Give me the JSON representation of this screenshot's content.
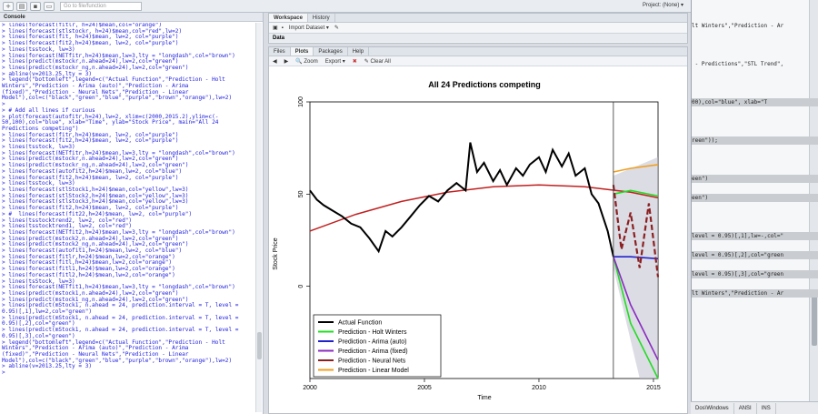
{
  "topbar": {
    "goto_placeholder": "Go to file/function",
    "project": "Project: (None) ▾"
  },
  "console": {
    "title": "Console",
    "lines": [
      "> lines(forecast(fitlr, h=24)$mean,col=\"orange\")",
      "> lines(forecast(stlstockr, h=24)$mean,col=\"red\",lw=2)",
      "> lines(forecast(fit, h=24)$mean, lw=2, col=\"purple\")",
      "> lines(forecast(fit2,h=24)$mean, lw=2, col=\"purple\")",
      "> lines(tsstock, lw=3)",
      "> lines(forecast(NETfitr,h=24)$mean,lw=3,lty = \"longdash\",col=\"brown\")",
      "> lines(predict(mstockr,n.ahead=24),lw=2,col=\"green\")",
      "> lines(predict(mstockr_ng,n.ahead=24),lw=2,col=\"green\")",
      "> abline(v=2013.25,lty = 3)",
      "> legend(\"bottomleft\",legend=c(\"Actual Function\",\"Prediction - Holt",
      "Winters\",\"Prediction - Arima (auto)\",\"Prediction - Arima",
      "(fixed)\",\"Prediction - Neural Nets\",\"Prediction - Linear",
      "Model\"),col=c(\"black\",\"green\",\"blue\",\"purple\",\"brown\",\"orange\"),lw=2)",
      ">",
      "> # Add all lines if curious",
      "> plot(forecast(autofitr,h=24),lw=2, xlim=c(2000,2015.2),ylim=c(-",
      "50,100),col=\"blue\", xlab=\"Time\", ylab=\"Stock Price\", main=\"All 24",
      "Predictions competing\")",
      "> lines(forecast(fitr,h=24)$mean, lw=2, col=\"purple\")",
      "> lines(forecast(fit2,h=24)$mean, lw=2, col=\"purple\")",
      "> lines(tsstock, lw=3)",
      "> lines(forecast(NETfitr,h=24)$mean,lw=3,lty = \"longdash\",col=\"brown\")",
      "> lines(predict(mstockr,n.ahead=24),lw=2,col=\"green\")",
      "> lines(predict(mstockr_ng,n.ahead=24),lw=2,col=\"green\")",
      "> lines(forecast(autofit2,h=24)$mean,lw=2, col=\"blue\")",
      "> lines(forecast(fit2,h=24)$mean, lw=2, col=\"purple\")",
      "> lines(tsstock, lw=3)",
      "> lines(forecast(stlStock1,h=24)$mean,col=\"yellow\",lw=3)",
      "> lines(forecast(stlStock2,h=24)$mean,col=\"yellow\",lw=3)",
      "> lines(forecast(stlstock3,h=24)$mean,col=\"yellow\",lw=3)",
      "> lines(forecast(fit2,h=24)$mean, lw=2, col=\"purple\")",
      "> #  lines(forecast(fit22,h=24)$mean, lw=2, col=\"purple\")",
      "> lines(tsstocktrend2, lw=2, col=\"red\")",
      "> lines(tsstocktrend1, lw=2, col=\"red\")",
      "> lines(forecast(NETfit2,h=24)$mean,lw=3,lty = \"longdash\",col=\"brown\")",
      "> lines(predict(mstock2,n.ahead=24),lw=2,col=\"green\")",
      "> lines(predict(mstock2_ng,n.ahead=24),lw=2,col=\"green\")",
      "> lines(forecast(autofit1,h=24)$mean,lw=2, col=\"blue\")",
      "> lines(forecast(fitlr,h=24)$mean,lw=2,col=\"orange\")",
      "> lines(forecast(fitl,h=24)$mean,lw=2,col=\"orange\")",
      "> lines(forecast(fitl1,h=24)$mean,lw=2,col=\"orange\")",
      "> lines(forecast(fitl2,h=24)$mean,lw=2,col=\"orange\")",
      "> lines(tsStock, lw=3)",
      "> lines(forecast(NETfit1,h=24)$mean,lw=3,lty = \"longdash\",col=\"brown\")",
      "> lines(predict(mstock1,n.ahead=24),lw=2,col=\"green\")",
      "> lines(predict(mstock1_ng,n.ahead=24),lw=2,col=\"green\")",
      "> lines(predict(mStock1, n.ahead = 24, prediction.interval = T, level =",
      "0.95)[,1],lw=2,col=\"green\")",
      "> lines(predict(mStock1, n.ahead = 24, prediction.interval = T, level =",
      "0.95)[,2],col=\"green\")",
      "> lines(predict(mStock1, n.ahead = 24, prediction.interval = T, level =",
      "0.95)[,3],col=\"green\")",
      "> legend(\"bottomleft\",legend=c(\"Actual Function\",\"Prediction - Holt",
      "Winters\",\"Prediction - Arima (auto)\",\"Prediction - Arima",
      "(fixed)\",\"Prediction - Neural Nets\",\"Prediction - Linear",
      "Model\"),col=c(\"black\",\"green\",\"blue\",\"purple\",\"brown\",\"orange\"),lw=2)",
      "> abline(v=2013.25,lty = 3)",
      ">"
    ]
  },
  "workspace": {
    "tabs": [
      "Workspace",
      "History"
    ],
    "import_label": "Import Dataset ▾",
    "section": "Data"
  },
  "plots": {
    "tabs": [
      "Files",
      "Plots",
      "Packages",
      "Help"
    ],
    "zoom": "Zoom",
    "export": "Export ▾",
    "clear": "Clear All"
  },
  "editor": {
    "lines": [
      {
        "text": "lt Winters\",\"Prediction - Ar",
        "hl": false
      },
      {
        "text": "",
        "hl": false
      },
      {
        "text": " - Predictions\",\"STL Trend\",",
        "hl": false
      },
      {
        "text": "",
        "hl": false
      },
      {
        "text": "00),col=\"blue\", xlab=\"T",
        "hl": true
      },
      {
        "text": "",
        "hl": false
      },
      {
        "text": "reen\"));",
        "hl": true
      },
      {
        "text": "",
        "hl": false
      },
      {
        "text": "een\")",
        "hl": true
      },
      {
        "text": "een\")",
        "hl": true
      },
      {
        "text": "",
        "hl": false
      },
      {
        "text": "level = 0.95)[,1],lw=-,col=\"",
        "hl": true
      },
      {
        "text": "level = 0.95)[,2],col=\"green",
        "hl": true
      },
      {
        "text": "level = 0.95)[,3],col=\"green",
        "hl": true
      },
      {
        "text": "lt Winters\",\"Prediction - Ar",
        "hl": true
      }
    ],
    "status": [
      "Dos\\Windows",
      "ANSI",
      "INS"
    ]
  },
  "chart_data": {
    "type": "line",
    "title": "All 24 Predictions competing",
    "xlabel": "Time",
    "ylabel": "Stock Price",
    "xlim": [
      2000,
      2015.2
    ],
    "ylim": [
      -50,
      100
    ],
    "xticks": [
      2000,
      2005,
      2010,
      2015
    ],
    "yticks": [
      0,
      50,
      100
    ],
    "vline": 2013.25,
    "legend_position": "bottom-left",
    "legend": [
      {
        "label": "Actual Function",
        "color": "#000000"
      },
      {
        "label": "Prediction - Holt Winters",
        "color": "#22dd22"
      },
      {
        "label": "Prediction - Arima (auto)",
        "color": "#2222cc"
      },
      {
        "label": "Prediction - Arima (fixed)",
        "color": "#8a2bbf"
      },
      {
        "label": "Prediction - Neural Nets",
        "color": "#8b2020"
      },
      {
        "label": "Prediction - Linear Model",
        "color": "#f0a020"
      }
    ],
    "actual": {
      "x": [
        2000,
        2000.3,
        2000.6,
        2001,
        2001.4,
        2001.8,
        2002.2,
        2002.6,
        2003,
        2003.3,
        2003.6,
        2004,
        2004.4,
        2004.8,
        2005.2,
        2005.6,
        2006,
        2006.4,
        2006.8,
        2007,
        2007.3,
        2007.6,
        2008,
        2008.3,
        2008.6,
        2009,
        2009.3,
        2009.6,
        2010,
        2010.3,
        2010.6,
        2011,
        2011.3,
        2011.6,
        2012,
        2012.3,
        2012.6,
        2013,
        2013.25
      ],
      "y": [
        52,
        47,
        44,
        41,
        38,
        34,
        32,
        26,
        19,
        30,
        27,
        32,
        38,
        44,
        49,
        46,
        52,
        56,
        52,
        78,
        62,
        67,
        57,
        63,
        55,
        64,
        60,
        66,
        70,
        62,
        74,
        65,
        72,
        60,
        64,
        50,
        45,
        30,
        16
      ]
    },
    "trend": {
      "x": [
        2000,
        2002,
        2004,
        2006,
        2008,
        2010,
        2012,
        2014,
        2015.2
      ],
      "y": [
        30,
        39,
        46,
        51,
        54,
        55,
        54,
        51,
        48
      ]
    },
    "forecasts": [
      {
        "name": "Holt Winters",
        "color": "#22dd22",
        "x": [
          2013.25,
          2014,
          2015.2
        ],
        "y": [
          16,
          -20,
          -50
        ]
      },
      {
        "name": "Holt Winters 2",
        "color": "#22dd22",
        "x": [
          2013.25,
          2014,
          2015.2
        ],
        "y": [
          50,
          52,
          49
        ]
      },
      {
        "name": "Arima (auto)",
        "color": "#2222cc",
        "x": [
          2013.25,
          2014,
          2015.2
        ],
        "y": [
          16,
          16,
          15
        ]
      },
      {
        "name": "Arima (fixed)",
        "color": "#8a2bbf",
        "x": [
          2013.25,
          2014,
          2015.2
        ],
        "y": [
          16,
          -10,
          -40
        ]
      },
      {
        "name": "Linear Model",
        "color": "#f0a020",
        "x": [
          2013.25,
          2014,
          2015.2
        ],
        "y": [
          62,
          64,
          66
        ]
      },
      {
        "name": "Neural Nets",
        "color": "#8b2020",
        "x": [
          2013.25,
          2013.6,
          2014,
          2014.4,
          2014.8,
          2015.2
        ],
        "y": [
          55,
          20,
          40,
          10,
          45,
          5
        ]
      }
    ]
  }
}
